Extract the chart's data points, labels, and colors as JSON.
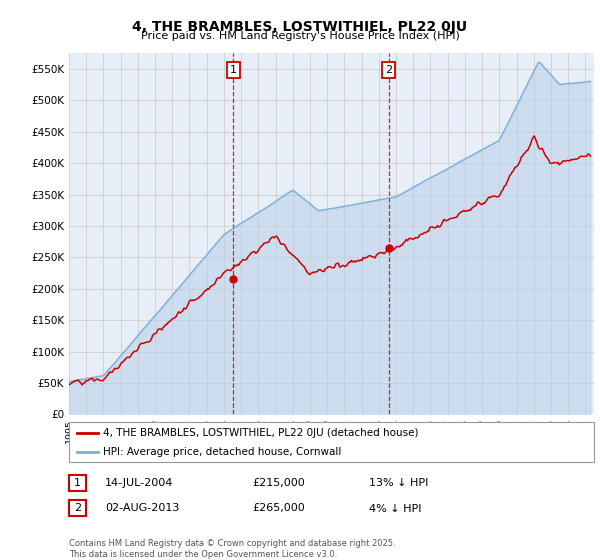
{
  "title": "4, THE BRAMBLES, LOSTWITHIEL, PL22 0JU",
  "subtitle": "Price paid vs. HM Land Registry's House Price Index (HPI)",
  "legend_line1": "4, THE BRAMBLES, LOSTWITHIEL, PL22 0JU (detached house)",
  "legend_line2": "HPI: Average price, detached house, Cornwall",
  "footer": "Contains HM Land Registry data © Crown copyright and database right 2025.\nThis data is licensed under the Open Government Licence v3.0.",
  "transaction1_date": "14-JUL-2004",
  "transaction1_price": "£215,000",
  "transaction1_hpi": "13% ↓ HPI",
  "transaction1_year": 2004.54,
  "transaction1_value": 215000,
  "transaction2_date": "02-AUG-2013",
  "transaction2_price": "£265,000",
  "transaction2_hpi": "4% ↓ HPI",
  "transaction2_year": 2013.58,
  "transaction2_value": 265000,
  "ylim": [
    0,
    575000
  ],
  "yticks": [
    0,
    50000,
    100000,
    150000,
    200000,
    250000,
    300000,
    350000,
    400000,
    450000,
    500000,
    550000
  ],
  "background_color": "#ffffff",
  "plot_bg_color": "#e8eef8",
  "grid_color": "#c8c8c8",
  "hpi_color": "#7ab0d4",
  "hpi_fill_color": "#b8d0e8",
  "price_color": "#cc0000",
  "vline_color": "#cc0000"
}
